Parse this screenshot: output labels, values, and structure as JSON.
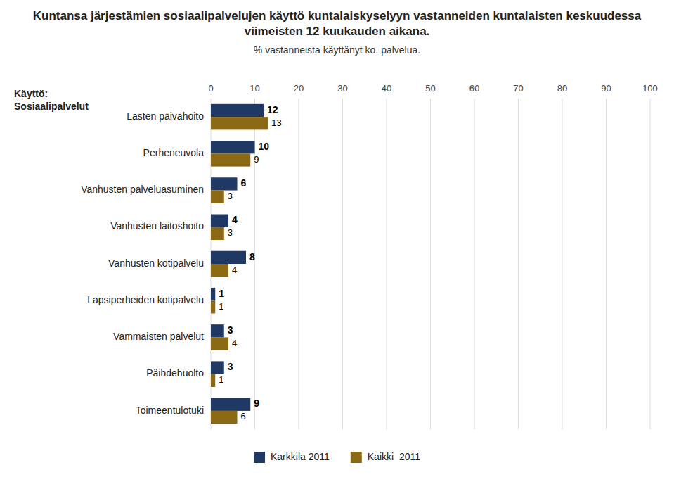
{
  "chart_data": {
    "type": "bar",
    "orientation": "horizontal",
    "title": "Kuntansa järjestämien sosiaalipalvelujen käyttö kuntalaiskyselyyn vastanneiden kuntalaisten keskuudessa viimeisten 12 kuukauden aikana.",
    "subtitle": "% vastanneista käyttänyt ko. palvelua.",
    "y_label": "Käyttö:\nSosiaalipalvelut",
    "categories": [
      "Lasten päivähoito",
      "Perheneuvola",
      "Vanhusten palveluasuminen",
      "Vanhusten laitoshoito",
      "Vanhusten kotipalvelu",
      "Lapsiperheiden kotipalvelu",
      "Vammaisten palvelut",
      "Päihdehuolto",
      "Toimeentulotuki"
    ],
    "series": [
      {
        "name": "Karkkila 2011",
        "color": "#1F3864",
        "values": [
          12,
          10,
          6,
          4,
          8,
          1,
          3,
          3,
          9
        ]
      },
      {
        "name": "Kaikki  2011",
        "color": "#8B6914",
        "values": [
          13,
          9,
          3,
          3,
          4,
          1,
          4,
          1,
          6
        ]
      }
    ],
    "xlim": [
      0,
      100
    ],
    "xticks": [
      0,
      10,
      20,
      30,
      40,
      50,
      60,
      70,
      80,
      90,
      100
    ],
    "grid": true,
    "data_labels": true,
    "legend": "bottom"
  }
}
